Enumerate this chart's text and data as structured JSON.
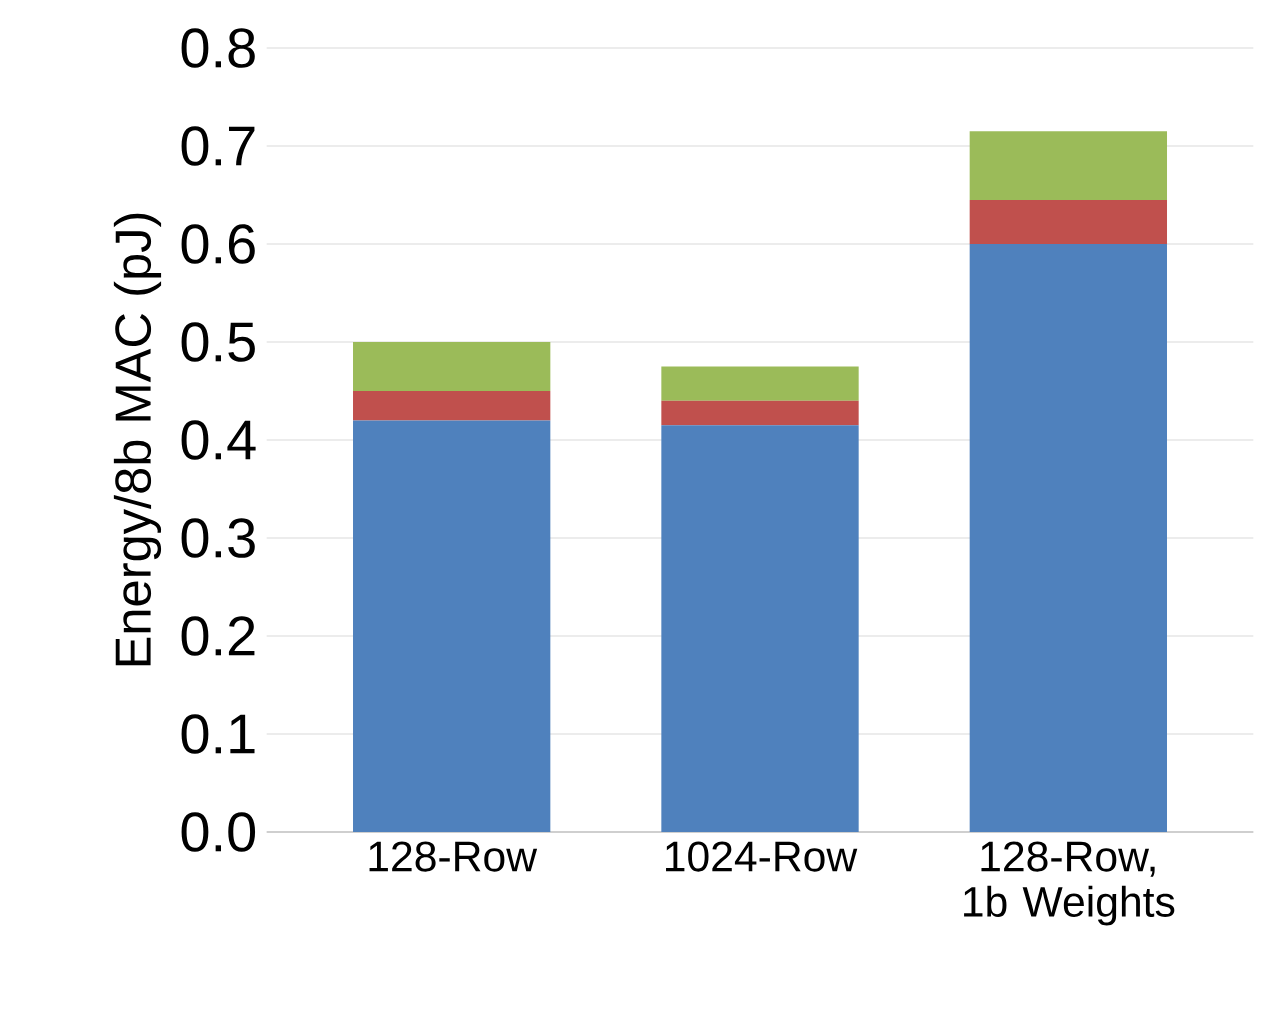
{
  "chart_data": {
    "type": "bar",
    "stacked": true,
    "ylabel": "Energy/8b MAC (pJ)",
    "categories": [
      "128-Row",
      "1024-Row",
      "128-Row, 1b Weights"
    ],
    "series": [
      {
        "color": "#4f81bd",
        "values": [
          0.42,
          0.415,
          0.6
        ]
      },
      {
        "color": "#c0504d",
        "values": [
          0.03,
          0.025,
          0.045
        ]
      },
      {
        "color": "#9bbb59",
        "values": [
          0.05,
          0.035,
          0.07
        ]
      }
    ],
    "ylim": [
      0,
      0.8
    ],
    "yticks": [
      {
        "value": 0,
        "label": "0.0"
      },
      0.1,
      0.2,
      0.3,
      0.4,
      0.5,
      0.6,
      0.7,
      0.8
    ],
    "grid": "y"
  }
}
